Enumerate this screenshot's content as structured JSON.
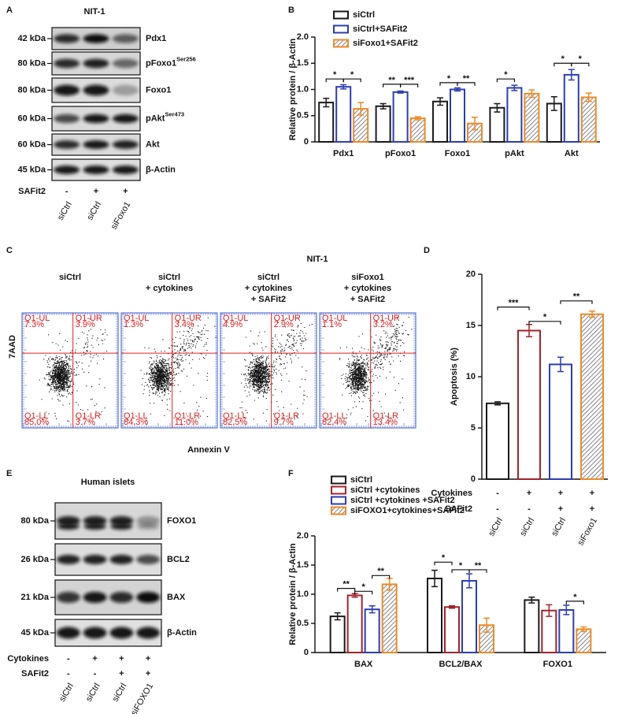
{
  "panel_a": {
    "label": "A",
    "title": "NIT-1",
    "rows": [
      {
        "size": "42 kDa",
        "protein": "Pdx1"
      },
      {
        "size": "80 kDa",
        "protein": "pFoxo1",
        "superscript": "Ser256"
      },
      {
        "size": "80 kDa",
        "protein": "Foxo1"
      },
      {
        "size": "60 kDa",
        "protein": "pAkt",
        "superscript": "Ser473"
      },
      {
        "size": "60 kDa",
        "protein": "Akt"
      },
      {
        "size": "45 kDa",
        "protein": "β-Actin"
      }
    ],
    "conditions": [
      {
        "name": "SAFit2",
        "values": [
          "-",
          "+",
          "+"
        ]
      }
    ],
    "lanes": [
      "siCtrl",
      "siCtrl",
      "siFoxo1"
    ]
  },
  "panel_c": {
    "label": "C",
    "title": "NIT-1",
    "ylabel": "7AAD",
    "xlabel": "Annexin V",
    "plots": [
      {
        "header": [
          "siCtrl"
        ],
        "quadrants": {
          "UL": {
            "name": "Q1-UL",
            "value": "7.3%"
          },
          "UR": {
            "name": "Q1-UR",
            "value": "3.9%"
          },
          "LL": {
            "name": "Q1-LL",
            "value": "85.0%"
          },
          "LR": {
            "name": "Q1-LR",
            "value": "3.7%"
          }
        }
      },
      {
        "header": [
          "siCtrl",
          "+ cytokines"
        ],
        "quadrants": {
          "UL": {
            "name": "Q1-UL",
            "value": "1.3%"
          },
          "UR": {
            "name": "Q1-UR",
            "value": "3.4%"
          },
          "LL": {
            "name": "Q1-LL",
            "value": "84.3%"
          },
          "LR": {
            "name": "Q1-LR",
            "value": "11.0%"
          }
        }
      },
      {
        "header": [
          "siCtrl",
          "+ cytokines",
          "+ SAFit2"
        ],
        "quadrants": {
          "UL": {
            "name": "Q1-UL",
            "value": "4.9%"
          },
          "UR": {
            "name": "Q1-UR",
            "value": "2.9%"
          },
          "LL": {
            "name": "Q1-LL",
            "value": "82.5%"
          },
          "LR": {
            "name": "Q1-LR",
            "value": "9.7%"
          }
        }
      },
      {
        "header": [
          "siFoxo1",
          "+ cytokines",
          "+ SAFit2"
        ],
        "quadrants": {
          "UL": {
            "name": "Q1-UL",
            "value": "1.1%"
          },
          "UR": {
            "name": "Q1-UR",
            "value": "3.2%"
          },
          "LL": {
            "name": "Q1-LL",
            "value": "82.4%"
          },
          "LR": {
            "name": "Q1-LR",
            "value": "13.4%"
          }
        }
      }
    ]
  },
  "panel_e": {
    "label": "E",
    "title": "Human islets",
    "rows": [
      {
        "size": "80 kDa",
        "protein": "FOXO1"
      },
      {
        "size": "26 kDa",
        "protein": "BCL2"
      },
      {
        "size": "21 kDa",
        "protein": "BAX"
      },
      {
        "size": "45 kDa",
        "protein": "β-Actin"
      }
    ],
    "conditions": [
      {
        "name": "Cytokines",
        "values": [
          "-",
          "+",
          "+",
          "+"
        ]
      },
      {
        "name": "SAFit2",
        "values": [
          "-",
          "-",
          "+",
          "+"
        ]
      }
    ],
    "lanes": [
      "siCtrl",
      "siCtrl",
      "siCtrl",
      "siFOXO1"
    ]
  },
  "chart_data": [
    {
      "type": "bar",
      "panel_label": "B",
      "ylabel": "Relative protein / β-Actin",
      "categories": [
        "Pdx1",
        "pFoxo1",
        "Foxo1",
        "pAkt",
        "Akt"
      ],
      "series": [
        {
          "name": "siCtrl",
          "color": "#1a1a1a",
          "values": [
            0.75,
            0.68,
            0.77,
            0.65,
            0.73
          ],
          "errors": [
            0.08,
            0.05,
            0.07,
            0.08,
            0.13
          ]
        },
        {
          "name": "siCtrl+SAFit2",
          "color": "#2b3eb5",
          "values": [
            1.05,
            0.95,
            1.0,
            1.03,
            1.28
          ],
          "errors": [
            0.04,
            0.02,
            0.03,
            0.05,
            0.1
          ]
        },
        {
          "name": "siFoxo1+SAFit2",
          "color": "#f08a24",
          "hatch": true,
          "values": [
            0.63,
            0.45,
            0.35,
            0.92,
            0.85
          ],
          "errors": [
            0.12,
            0.03,
            0.12,
            0.07,
            0.08
          ]
        }
      ],
      "ylim": [
        0,
        2
      ],
      "yticks": [
        0,
        0.5,
        {
          "value": 1,
          "label": "1.0"
        },
        1.5,
        {
          "value": 2,
          "label": "2.0"
        }
      ],
      "annotations": [
        "*",
        "*",
        "**",
        "***",
        "*",
        "**",
        "*",
        "*",
        "*"
      ]
    },
    {
      "type": "bar",
      "panel_label": "D",
      "ylabel": "Apoptosis (%)",
      "categories": [
        "siCtrl",
        "siCtrl",
        "siCtrl",
        "siFoxo1"
      ],
      "values": [
        7.4,
        14.5,
        11.2,
        16.1
      ],
      "errors": [
        0.15,
        0.6,
        0.7,
        0.3
      ],
      "colors": [
        "#1a1a1a",
        "#a3232b",
        "#2b3eb5",
        "#f08a24"
      ],
      "hatch": [
        false,
        false,
        false,
        true
      ],
      "ylim": [
        0,
        20
      ],
      "yticks": [
        0,
        5,
        10,
        15,
        20
      ],
      "conditions": [
        {
          "name": "Cytokines",
          "values": [
            "-",
            "+",
            "+",
            "+"
          ]
        },
        {
          "name": "SAFit2",
          "values": [
            "-",
            "-",
            "+",
            "+"
          ]
        }
      ],
      "annotations": [
        "***",
        "*",
        "**"
      ]
    },
    {
      "type": "bar",
      "panel_label": "F",
      "ylabel": "Relative protein / β-Actin",
      "categories": [
        "BAX",
        "BCL2/BAX",
        "FOXO1"
      ],
      "series": [
        {
          "name": "siCtrl",
          "color": "#1a1a1a",
          "values": [
            0.62,
            1.27,
            0.9
          ],
          "errors": [
            0.06,
            0.14,
            0.05
          ]
        },
        {
          "name": "siCtrl +cytokines",
          "color": "#a3232b",
          "values": [
            0.98,
            0.78,
            0.72
          ],
          "errors": [
            0.03,
            0.02,
            0.1
          ]
        },
        {
          "name": "siCtrl +cytokines +SAFit2",
          "color": "#2b3eb5",
          "values": [
            0.74,
            1.23,
            0.73
          ],
          "errors": [
            0.06,
            0.12,
            0.08
          ]
        },
        {
          "name": "siFOXO1+cytokines+SAFit2",
          "color": "#f08a24",
          "hatch": true,
          "values": [
            1.17,
            0.47,
            0.4
          ],
          "errors": [
            0.1,
            0.12,
            0.04
          ]
        }
      ],
      "ylim": [
        0,
        2
      ],
      "yticks": [
        0,
        0.5,
        {
          "value": 1,
          "label": "1.0"
        },
        1.5,
        {
          "value": 2,
          "label": "2.0"
        }
      ],
      "annotations": [
        "**",
        "*",
        "**",
        "*",
        "*",
        "**",
        "*"
      ]
    }
  ]
}
